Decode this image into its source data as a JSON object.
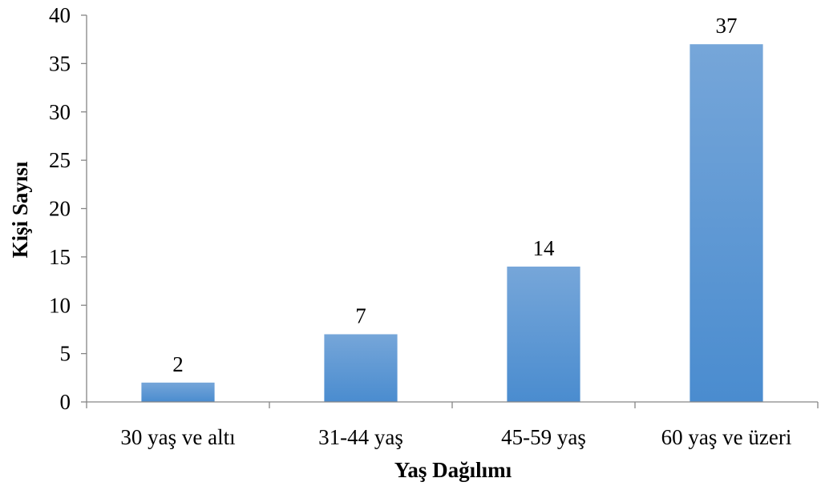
{
  "chart_data": {
    "type": "bar",
    "title": "",
    "xlabel": "Yaş Dağılımı",
    "ylabel": "Kişi Sayısı",
    "categories": [
      "30 yaş ve altı",
      "31-44 yaş",
      "45-59 yaş",
      "60 yaş ve üzeri"
    ],
    "values": [
      2,
      7,
      14,
      37
    ],
    "data_labels": [
      "2",
      "7",
      "14",
      "37"
    ],
    "ylim": [
      0,
      40
    ],
    "yticks": [
      0,
      5,
      10,
      15,
      20,
      25,
      30,
      35,
      40
    ],
    "grid": false,
    "legend": "none",
    "colors": {
      "bar_top": "#76a6d9",
      "bar_bottom": "#4a8ccf",
      "axis": "#868686"
    }
  }
}
